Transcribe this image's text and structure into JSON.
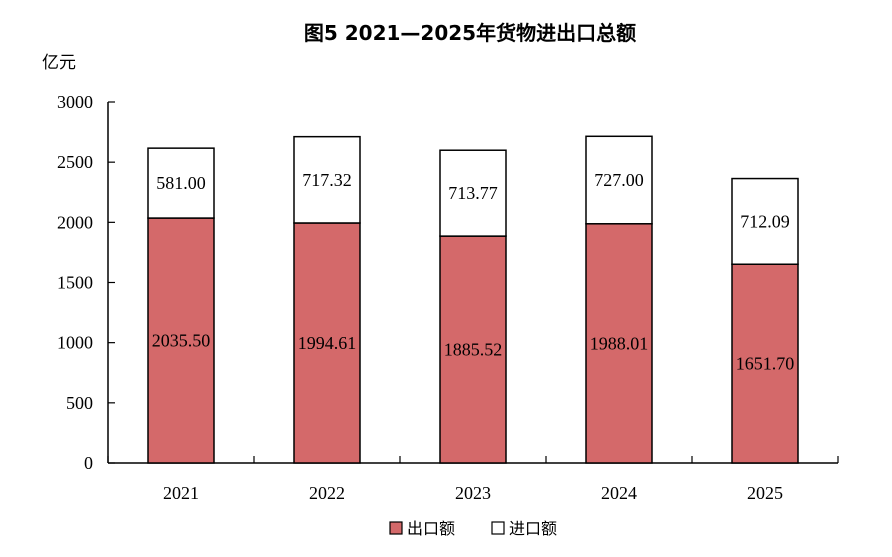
{
  "chart_data": {
    "type": "bar",
    "stacked": true,
    "title": "图5  2021—2025年货物进出口总额",
    "ylabel": "亿元",
    "xlabel": "",
    "ylim": [
      0,
      3000
    ],
    "yticks": [
      0,
      500,
      1000,
      1500,
      2000,
      2500,
      3000
    ],
    "categories": [
      "2021",
      "2022",
      "2023",
      "2024",
      "2025"
    ],
    "series": [
      {
        "name": "出口额",
        "values": [
          2035.5,
          1994.61,
          1885.52,
          1988.01,
          1651.7
        ],
        "labels": [
          "2035.50",
          "1994.61",
          "1885.52",
          "1988.01",
          "1651.70"
        ],
        "color": "#d4696a"
      },
      {
        "name": "进口额",
        "values": [
          581.0,
          717.32,
          713.77,
          727.0,
          712.09
        ],
        "labels": [
          "581.00",
          "717.32",
          "713.77",
          "727.00",
          "712.09"
        ],
        "color": "#ffffff"
      }
    ],
    "grid": false,
    "legend": "bottom-center"
  }
}
